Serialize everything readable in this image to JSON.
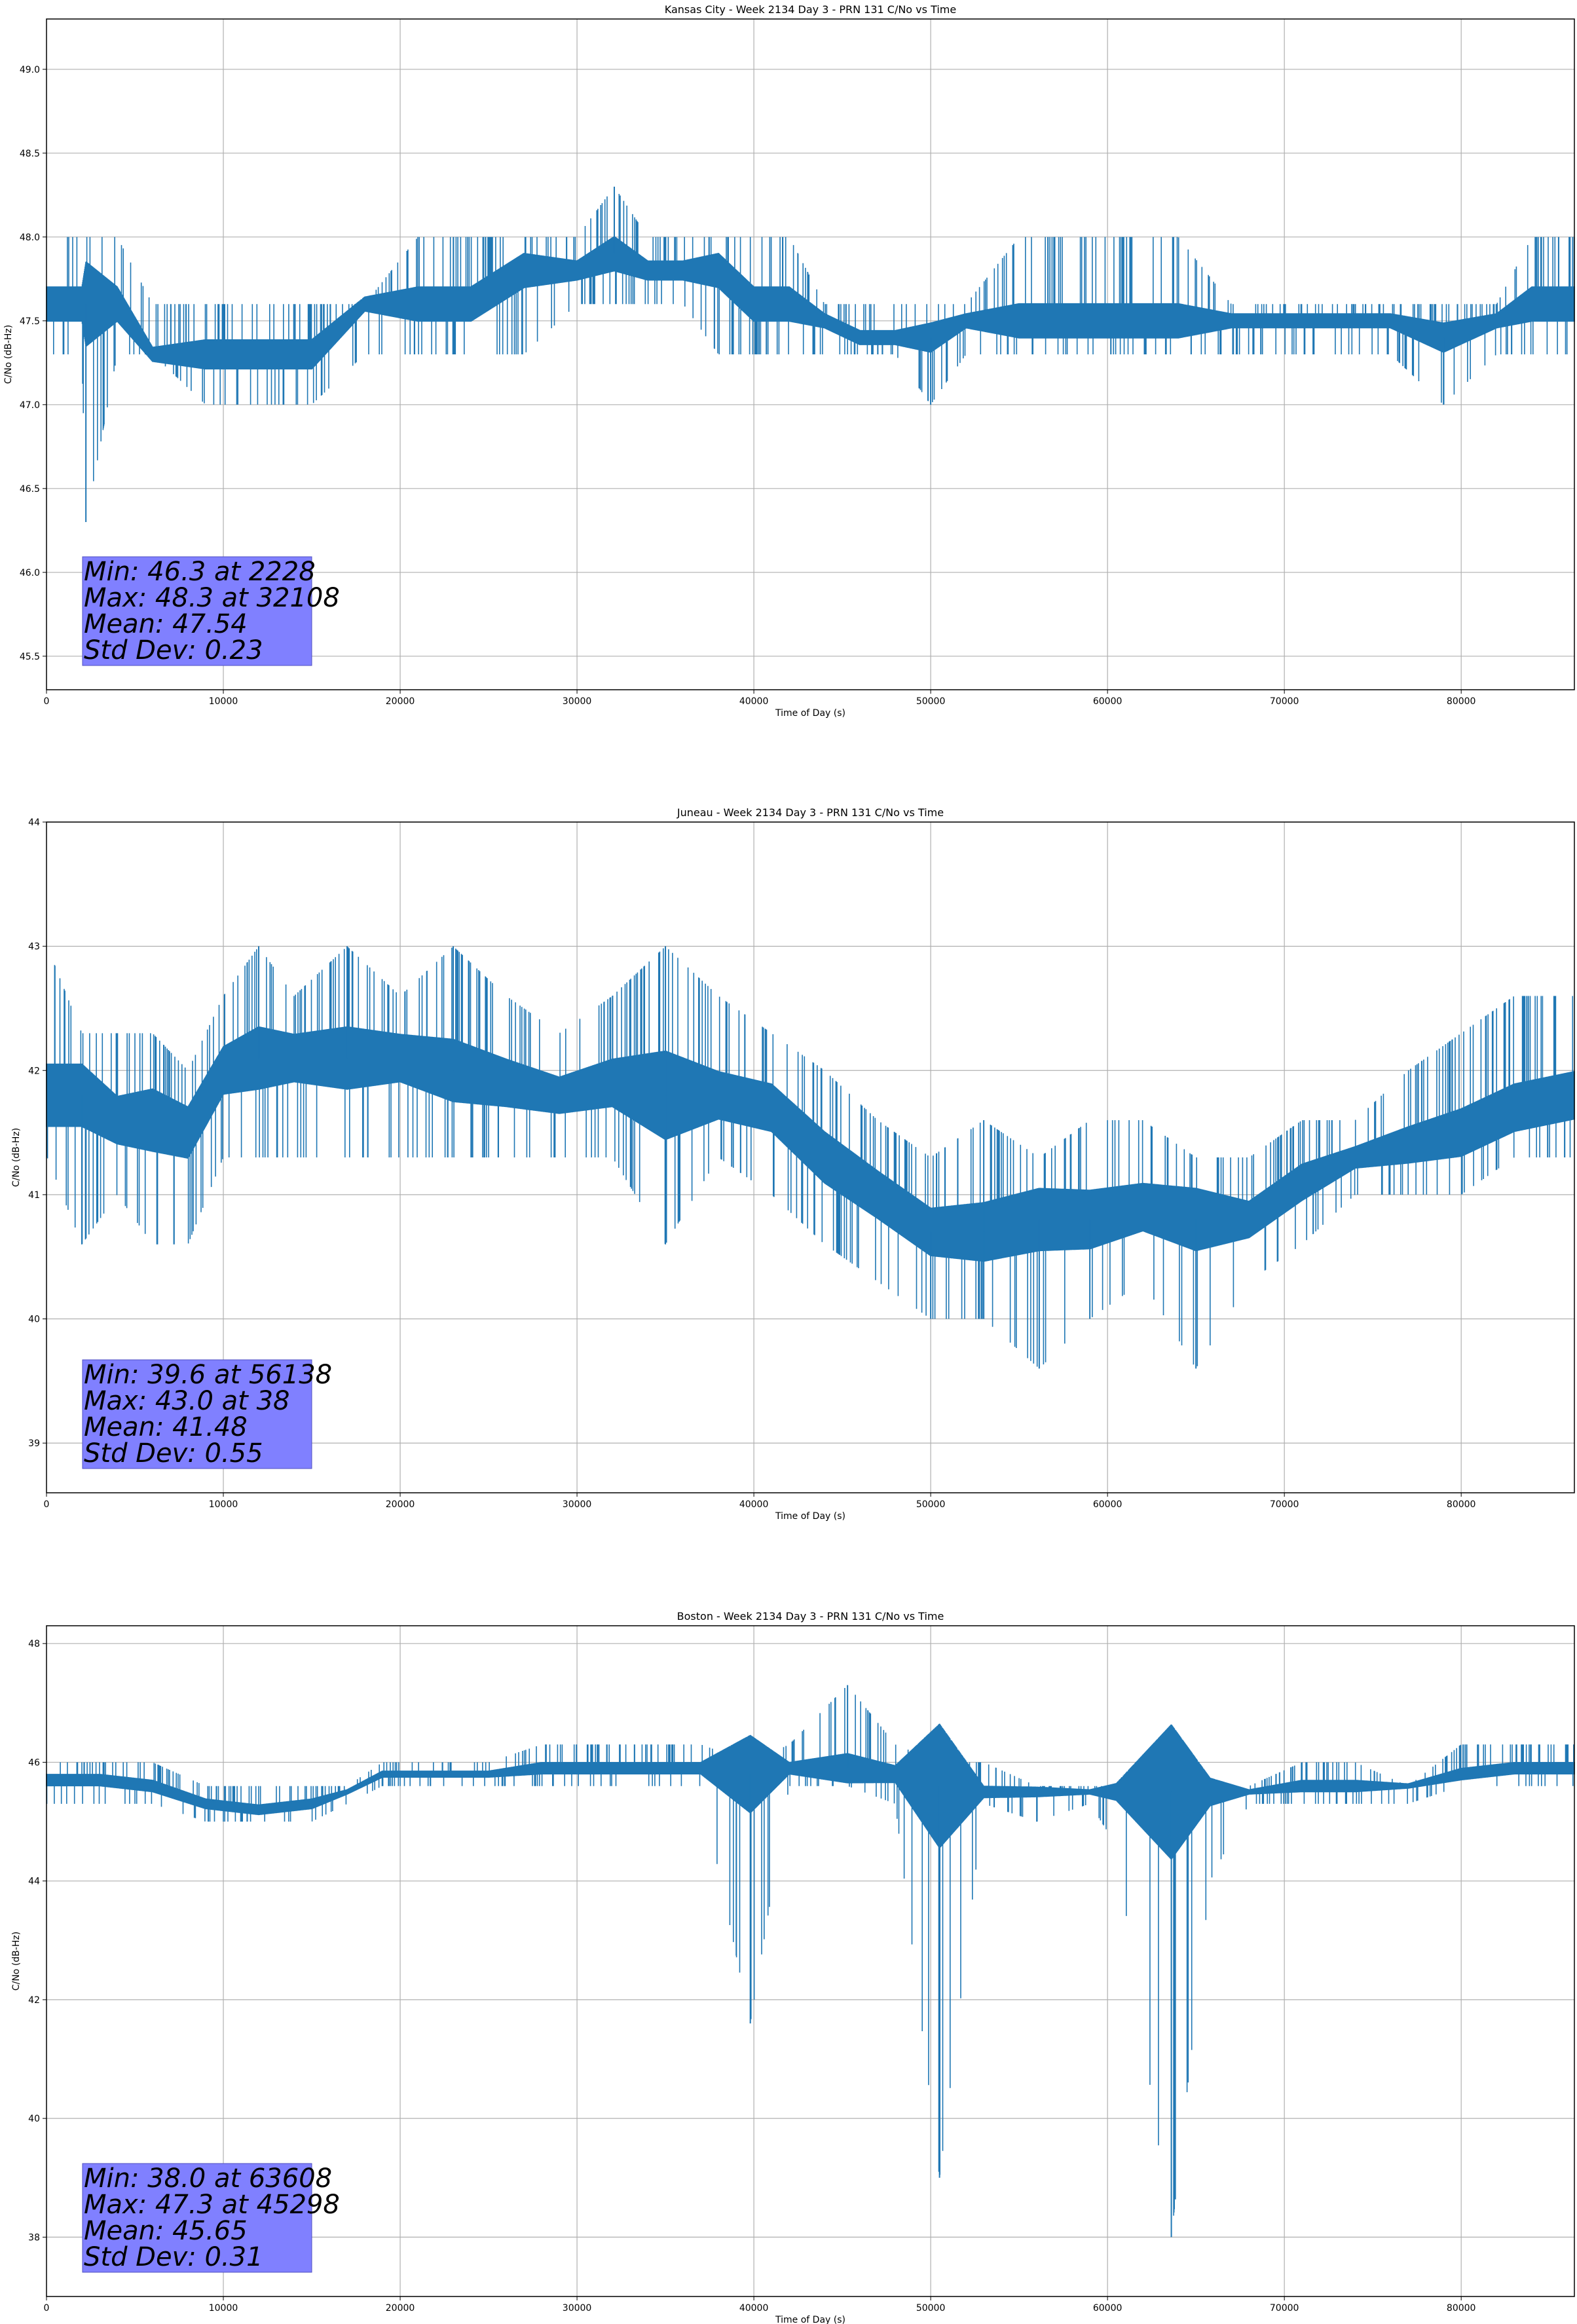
{
  "chart_data": [
    {
      "type": "line",
      "title": "Kansas City - Week 2134 Day 3 - PRN 131 C/No vs Time",
      "xlabel": "Time of Day (s)",
      "ylabel": "C/No (dB-Hz)",
      "xlim": [
        0,
        86400
      ],
      "ylim": [
        45.3,
        49.3
      ],
      "xticks": [
        0,
        10000,
        20000,
        30000,
        40000,
        50000,
        60000,
        70000,
        80000
      ],
      "xtick_labels": [
        "0",
        "10000",
        "20000",
        "30000",
        "40000",
        "50000",
        "60000",
        "70000",
        "80000"
      ],
      "yticks": [
        45.5,
        46.0,
        46.5,
        47.0,
        47.5,
        48.0,
        48.5,
        49.0
      ],
      "ytick_labels": [
        "45.5",
        "46.0",
        "46.5",
        "47.0",
        "47.5",
        "48.0",
        "48.5",
        "49.0"
      ],
      "grid": true,
      "series_color": "#1f77b4",
      "stats": {
        "lines": [
          "Min: 46.3 at 2228",
          "Max: 48.3 at 32108",
          "Mean: 47.54",
          "Std Dev: 0.23"
        ],
        "box_color": "#8080ff"
      },
      "series": [
        {
          "x": [
            0,
            2000,
            2228,
            4000,
            6000,
            9000,
            12000,
            15000,
            18000,
            21000,
            24000,
            27000,
            30000,
            32108,
            34000,
            36000,
            38000,
            40000,
            42000,
            44000,
            46000,
            48000,
            50000,
            52000,
            55000,
            58000,
            61000,
            64000,
            67000,
            70000,
            73000,
            76000,
            79000,
            82000,
            84000,
            86400
          ],
          "y_low": [
            47.3,
            47.3,
            46.3,
            47.3,
            47.3,
            47.0,
            47.0,
            47.0,
            47.3,
            47.3,
            47.3,
            47.3,
            47.6,
            47.6,
            47.6,
            47.6,
            47.3,
            47.3,
            47.3,
            47.3,
            47.3,
            47.3,
            47.0,
            47.3,
            47.3,
            47.3,
            47.3,
            47.3,
            47.3,
            47.3,
            47.3,
            47.3,
            47.0,
            47.3,
            47.3,
            47.3
          ],
          "y_high": [
            48.0,
            48.0,
            48.0,
            48.0,
            47.6,
            47.6,
            47.6,
            47.6,
            47.6,
            48.0,
            48.0,
            48.0,
            48.0,
            48.3,
            48.0,
            48.0,
            48.0,
            48.0,
            48.0,
            47.6,
            47.6,
            47.6,
            47.6,
            47.6,
            48.0,
            48.0,
            48.0,
            48.0,
            47.6,
            47.6,
            47.6,
            47.6,
            47.6,
            47.6,
            48.0,
            48.0
          ],
          "y_mid": [
            47.6,
            47.6,
            47.6,
            47.6,
            47.3,
            47.3,
            47.3,
            47.3,
            47.6,
            47.6,
            47.6,
            47.8,
            47.8,
            47.9,
            47.8,
            47.8,
            47.8,
            47.6,
            47.6,
            47.5,
            47.4,
            47.4,
            47.4,
            47.5,
            47.5,
            47.5,
            47.5,
            47.5,
            47.5,
            47.5,
            47.5,
            47.5,
            47.4,
            47.5,
            47.6,
            47.6
          ]
        }
      ]
    },
    {
      "type": "line",
      "title": "Juneau - Week 2134 Day 3 - PRN 131 C/No vs Time",
      "xlabel": "Time of Day (s)",
      "ylabel": "C/No (dB-Hz)",
      "xlim": [
        0,
        86400
      ],
      "ylim": [
        38.6,
        44.0
      ],
      "xticks": [
        0,
        10000,
        20000,
        30000,
        40000,
        50000,
        60000,
        70000,
        80000
      ],
      "xtick_labels": [
        "0",
        "10000",
        "20000",
        "30000",
        "40000",
        "50000",
        "60000",
        "70000",
        "80000"
      ],
      "yticks": [
        39,
        40,
        41,
        42,
        43,
        44
      ],
      "ytick_labels": [
        "39",
        "40",
        "41",
        "42",
        "43",
        "44"
      ],
      "grid": true,
      "series_color": "#1f77b4",
      "stats": {
        "lines": [
          "Min: 39.6 at 56138",
          "Max: 43.0 at 38",
          "Mean: 41.48",
          "Std Dev: 0.55"
        ],
        "box_color": "#8080ff"
      },
      "series": [
        {
          "x": [
            0,
            38,
            2000,
            4000,
            6000,
            8000,
            10000,
            12000,
            14000,
            17000,
            20000,
            23000,
            26000,
            29000,
            32000,
            35000,
            38000,
            41000,
            44000,
            47000,
            50000,
            53000,
            56138,
            59000,
            62000,
            65000,
            68000,
            71000,
            74000,
            77000,
            80000,
            83000,
            86400
          ],
          "y_low": [
            41.3,
            41.3,
            40.6,
            41.0,
            40.6,
            40.6,
            41.3,
            41.3,
            41.3,
            41.3,
            41.3,
            41.3,
            41.3,
            41.3,
            41.3,
            40.6,
            41.3,
            41.0,
            40.6,
            40.3,
            40.0,
            40.0,
            39.6,
            40.0,
            40.3,
            39.6,
            40.3,
            40.6,
            41.0,
            41.0,
            41.0,
            41.3,
            41.3
          ],
          "y_high": [
            43.0,
            43.0,
            42.3,
            42.3,
            42.3,
            42.0,
            42.6,
            43.0,
            42.6,
            43.0,
            42.6,
            43.0,
            42.6,
            42.3,
            42.6,
            43.0,
            42.6,
            42.3,
            42.0,
            41.6,
            41.3,
            41.6,
            41.3,
            41.6,
            41.6,
            41.3,
            41.3,
            41.6,
            41.6,
            42.0,
            42.3,
            42.6,
            42.6
          ],
          "y_mid": [
            41.8,
            41.8,
            41.8,
            41.6,
            41.6,
            41.5,
            42.0,
            42.1,
            42.1,
            42.1,
            42.1,
            42.0,
            41.9,
            41.8,
            41.9,
            41.8,
            41.8,
            41.7,
            41.3,
            41.0,
            40.7,
            40.7,
            40.8,
            40.8,
            40.9,
            40.8,
            40.8,
            41.1,
            41.3,
            41.4,
            41.5,
            41.7,
            41.8
          ]
        }
      ]
    },
    {
      "type": "line",
      "title": "Boston - Week 2134 Day 3 - PRN 131 C/No vs Time",
      "xlabel": "Time of Day (s)",
      "ylabel": "C/No (dB-Hz)",
      "xlim": [
        0,
        86400
      ],
      "ylim": [
        37.0,
        48.3
      ],
      "xticks": [
        0,
        10000,
        20000,
        30000,
        40000,
        50000,
        60000,
        70000,
        80000
      ],
      "xtick_labels": [
        "0",
        "10000",
        "20000",
        "30000",
        "40000",
        "50000",
        "60000",
        "70000",
        "80000"
      ],
      "yticks": [
        38,
        40,
        42,
        44,
        46,
        48
      ],
      "ytick_labels": [
        "38",
        "40",
        "42",
        "44",
        "46",
        "48"
      ],
      "grid": true,
      "series_color": "#1f77b4",
      "stats": {
        "lines": [
          "Min: 38.0 at 63608",
          "Max: 47.3 at 45298",
          "Mean: 45.65",
          "Std Dev: 0.31"
        ],
        "box_color": "#8080ff"
      },
      "series": [
        {
          "x": [
            0,
            3000,
            6000,
            9000,
            12000,
            15000,
            17000,
            19000,
            22000,
            25000,
            28000,
            31000,
            34000,
            37000,
            39800,
            42000,
            45298,
            48000,
            50500,
            53000,
            56000,
            59000,
            60500,
            63608,
            65800,
            68000,
            71000,
            74000,
            77000,
            80000,
            83000,
            86400
          ],
          "y_low": [
            45.3,
            45.3,
            45.3,
            45.0,
            45.0,
            45.0,
            45.3,
            45.6,
            45.6,
            45.6,
            45.6,
            45.6,
            45.6,
            45.6,
            41.6,
            45.6,
            45.6,
            45.3,
            39.0,
            45.3,
            45.0,
            45.3,
            44.6,
            38.0,
            44.0,
            45.3,
            45.3,
            45.3,
            45.3,
            45.6,
            45.6,
            45.6
          ],
          "y_high": [
            46.0,
            46.0,
            46.0,
            45.6,
            45.6,
            45.6,
            45.6,
            46.0,
            46.0,
            46.0,
            46.3,
            46.3,
            46.3,
            46.3,
            46.0,
            46.3,
            47.3,
            46.3,
            46.0,
            46.0,
            45.6,
            45.6,
            45.6,
            45.6,
            45.6,
            45.6,
            46.0,
            46.0,
            45.6,
            46.3,
            46.3,
            46.3
          ],
          "y_mid": [
            45.7,
            45.7,
            45.6,
            45.3,
            45.2,
            45.3,
            45.5,
            45.8,
            45.8,
            45.8,
            45.9,
            45.9,
            45.9,
            45.9,
            45.8,
            45.9,
            45.9,
            45.8,
            45.6,
            45.5,
            45.5,
            45.5,
            45.5,
            45.5,
            45.5,
            45.5,
            45.6,
            45.6,
            45.6,
            45.8,
            45.9,
            45.9
          ]
        }
      ]
    }
  ]
}
